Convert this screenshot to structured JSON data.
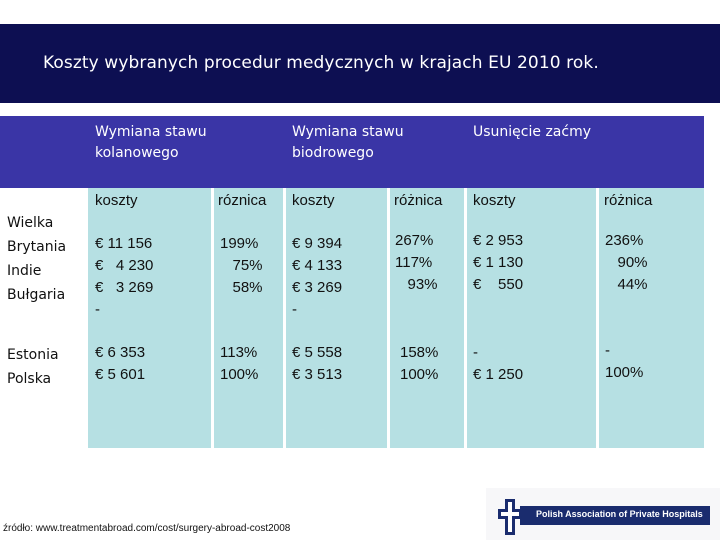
{
  "title": "Koszty wybranych procedur medycznych w krajach EU 2010 rok.",
  "headers": {
    "knee": [
      "Wymiana stawu",
      "kolanowego"
    ],
    "hip": [
      "Wymiana stawu",
      "biodrowego"
    ],
    "cataract": "Usunięcie zaćmy"
  },
  "subheaders": [
    "koszty",
    "róznica",
    "koszty",
    "różnica",
    "koszty",
    "różnica"
  ],
  "row_labels": [
    "Wielka Brytania",
    "Indie",
    "Bułgaria",
    "Estonia",
    "Polska"
  ],
  "group1": {
    "knee_cost": "€ 11 156\n€   4 230\n€   3 269\n-",
    "knee_diff": "199%\n   75%\n   58%",
    "hip_cost": "€ 9 394\n€ 4 133\n€ 3 269\n-",
    "hip_diff": "267%\n117%\n   93%",
    "cat_cost": "€ 2 953\n€ 1 130\n€    550",
    "cat_diff": "236%\n   90%\n   44%"
  },
  "group2": {
    "knee_cost": "€ 6 353\n€ 5 601",
    "knee_diff": "113%\n100%",
    "hip_cost": "€ 5 558\n€ 3 513",
    "hip_diff": "158%\n100%",
    "cat_cost": "-\n€ 1 250",
    "cat_diff": "-\n100%"
  },
  "source": "źródło: www.treatmentabroad.com/cost/surgery-abroad-cost2008",
  "logo_text": "Polish Association of Private Hospitals",
  "colors": {
    "title_bg": "#0d0f52",
    "header_bg": "#3a35a6",
    "cell_bg": "#b6e0e3"
  }
}
